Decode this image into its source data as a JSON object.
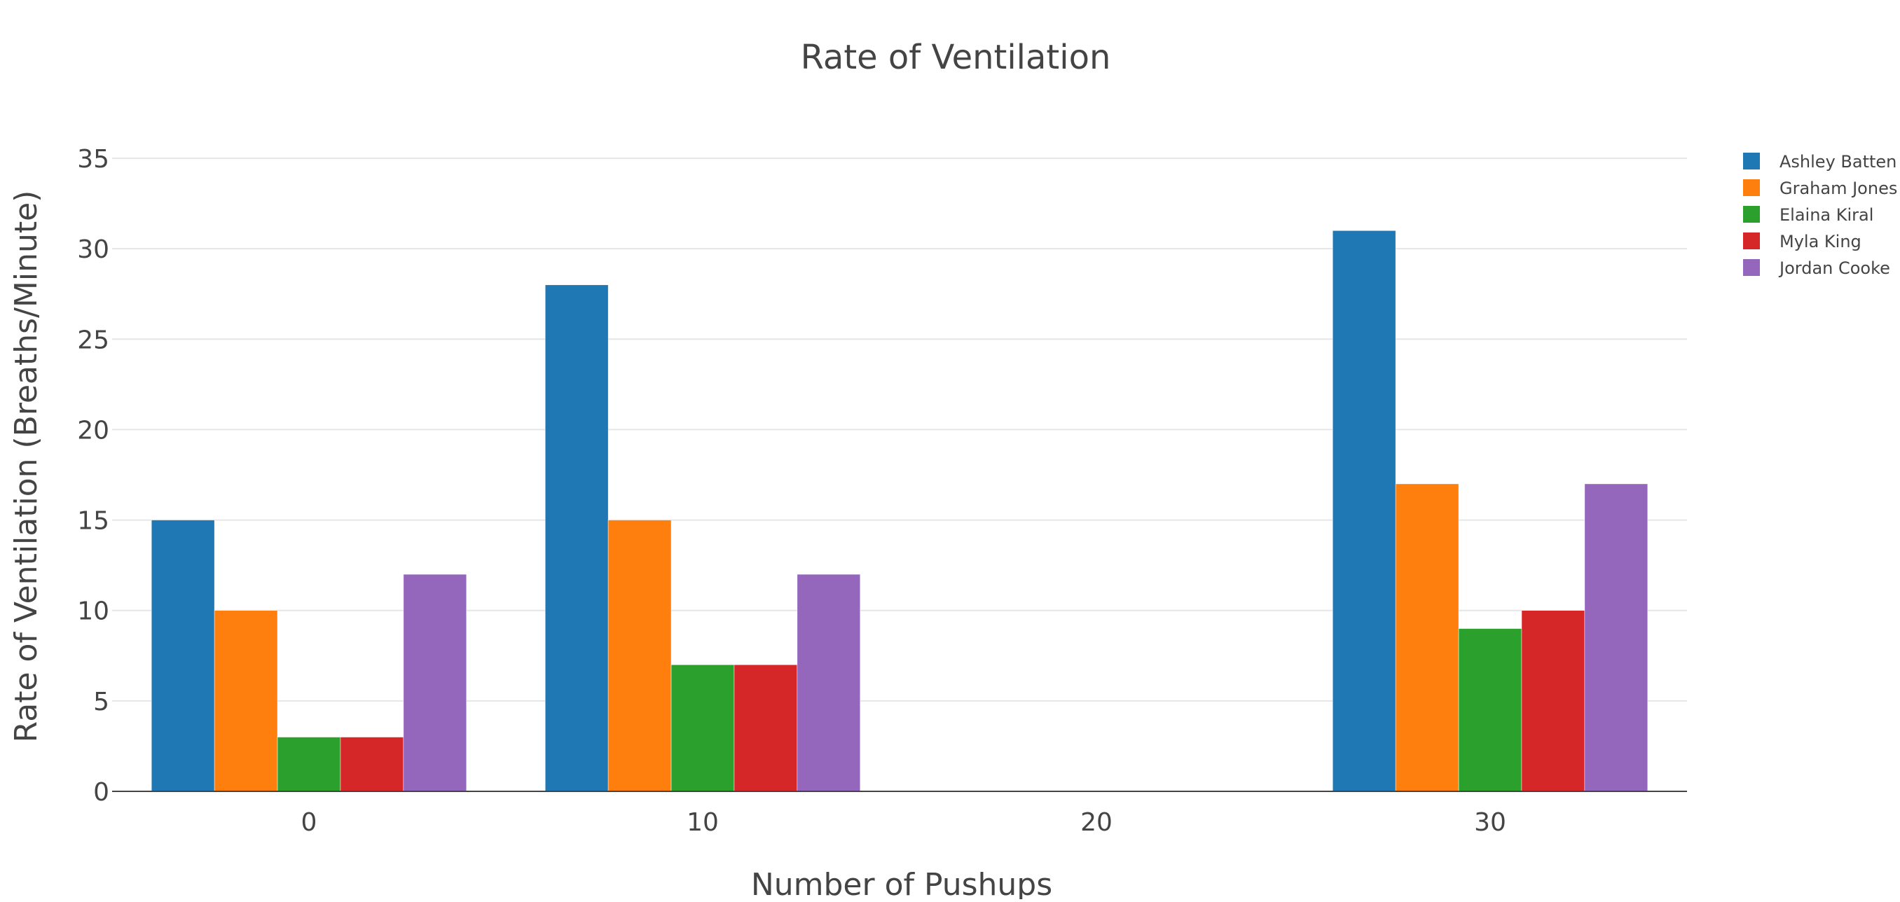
{
  "chart_data": {
    "type": "bar",
    "title": "Rate of Ventilation",
    "xlabel": "Number of Pushups",
    "ylabel": "Rate of Ventilation (Breaths/Minute)",
    "x": [
      0,
      10,
      20,
      30
    ],
    "x_ticks": [
      "0",
      "10",
      "20",
      "30"
    ],
    "xlim": [
      -5,
      35
    ],
    "ylim": [
      0,
      35
    ],
    "y_ticks": [
      0,
      5,
      10,
      15,
      20,
      25,
      30,
      35
    ],
    "y_tick_labels": [
      "0",
      "5",
      "10",
      "15",
      "20",
      "25",
      "30",
      "35"
    ],
    "grid": true,
    "legend_position": "top-right",
    "series": [
      {
        "name": "Ashley Batten",
        "color": "#1f77b4",
        "values": [
          15,
          28,
          null,
          31
        ]
      },
      {
        "name": "Graham Jones",
        "color": "#ff7f0e",
        "values": [
          10,
          15,
          null,
          17
        ]
      },
      {
        "name": "Elaina Kiral",
        "color": "#2ca02c",
        "values": [
          3,
          7,
          null,
          9
        ]
      },
      {
        "name": "Myla King",
        "color": "#d62728",
        "values": [
          3,
          7,
          null,
          10
        ]
      },
      {
        "name": "Jordan Cooke",
        "color": "#9467bd",
        "values": [
          12,
          12,
          null,
          17
        ]
      }
    ]
  }
}
